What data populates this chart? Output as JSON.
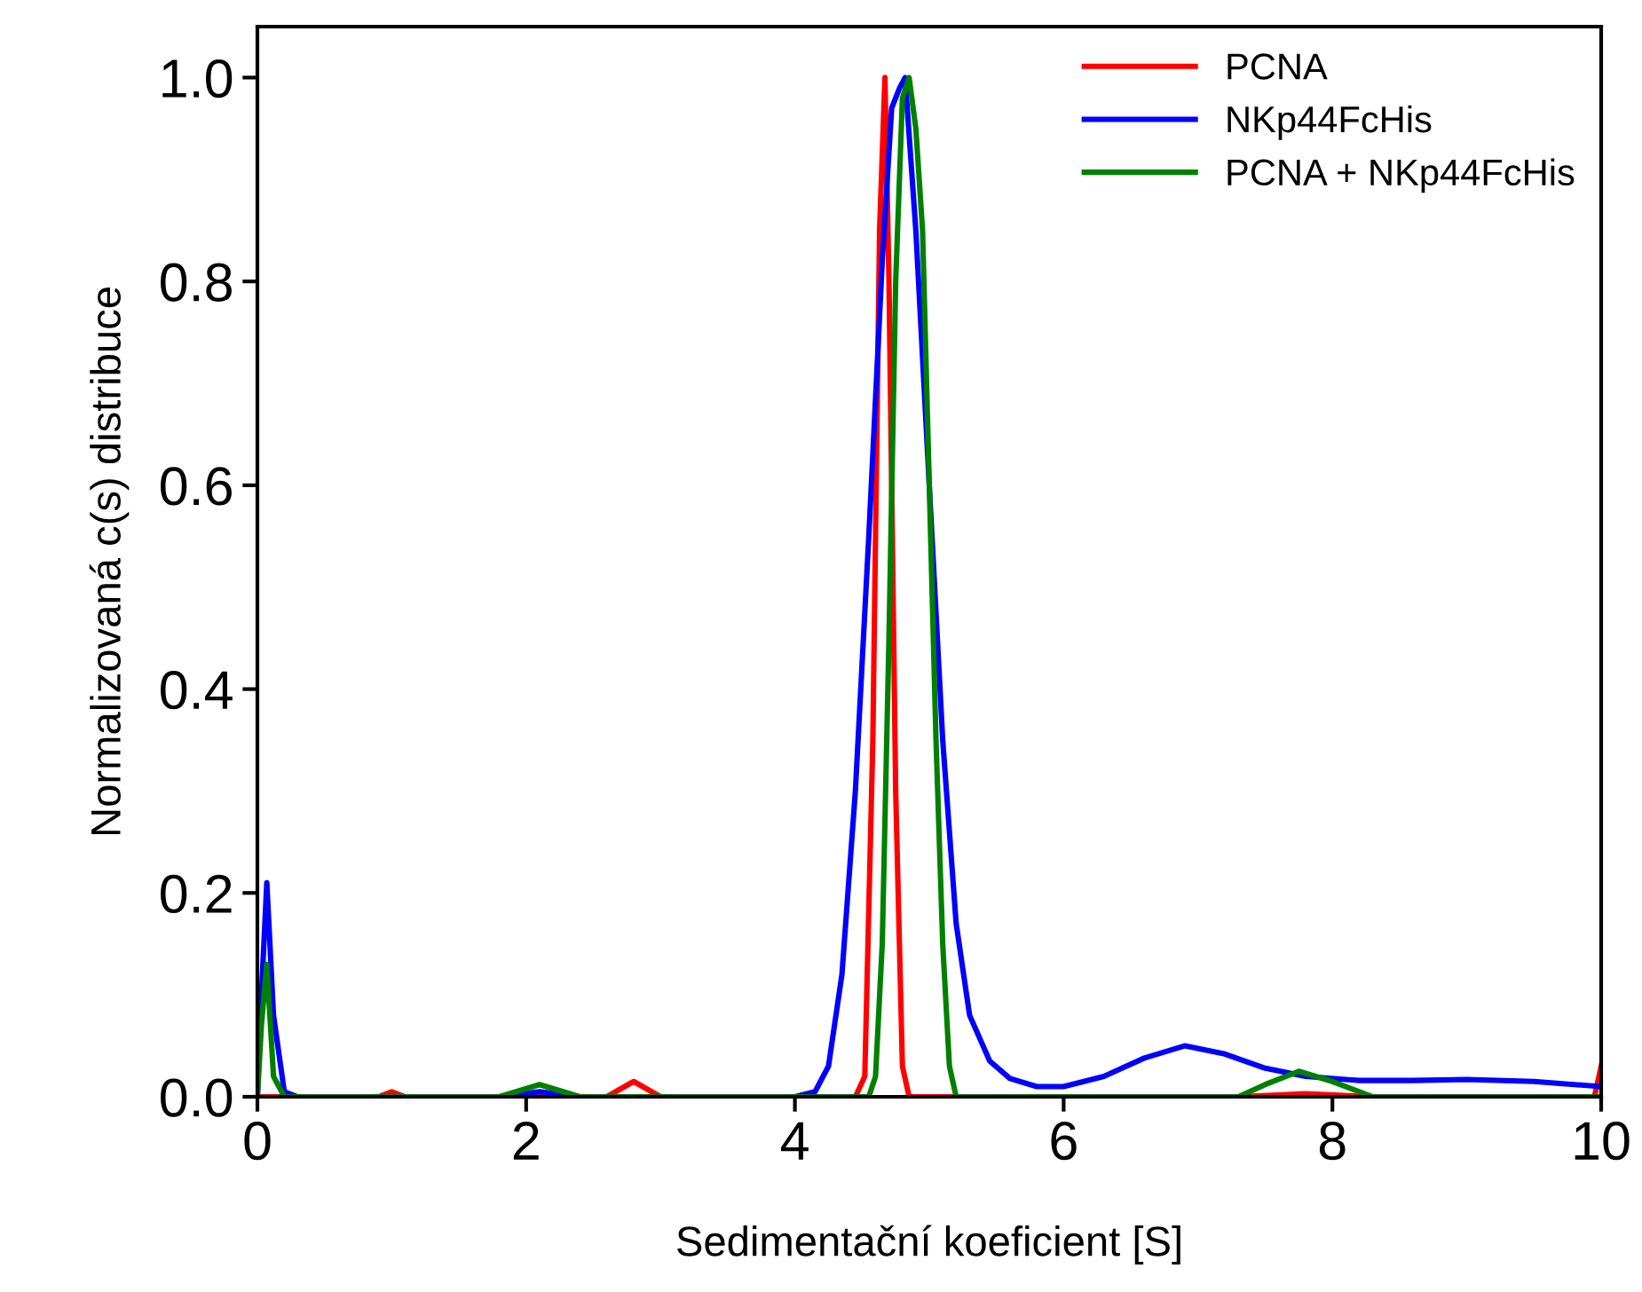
{
  "chart_data": {
    "type": "line",
    "xlabel": "Sedimentační koeficient [S]",
    "ylabel": "Normalizovaná c(s) distribuce",
    "xlim": [
      0,
      10
    ],
    "ylim": [
      0,
      1.05
    ],
    "xticks": [
      0,
      2,
      4,
      6,
      8,
      10
    ],
    "yticks": [
      {
        "value": 0,
        "label": "0.0"
      },
      0.2,
      0.4,
      0.6,
      0.8,
      {
        "value": 1,
        "label": "1.0"
      }
    ],
    "grid": false,
    "legend": "top right",
    "marker": "none",
    "line_style": "solid",
    "series": [
      {
        "name": "PCNA",
        "color": "#ff0000",
        "x": [
          0,
          0.9,
          1.0,
          1.1,
          2.6,
          2.8,
          3.0,
          4.45,
          4.52,
          4.58,
          4.63,
          4.67,
          4.7,
          4.75,
          4.8,
          4.85,
          7.3,
          7.8,
          8.3,
          9.95,
          10
        ],
        "values": [
          0,
          0,
          0.005,
          0,
          0,
          0.015,
          0,
          0,
          0.02,
          0.35,
          0.85,
          1.0,
          0.8,
          0.3,
          0.03,
          0,
          0,
          0.003,
          0,
          0,
          0.03
        ]
      },
      {
        "name": "NKp44FcHis",
        "color": "#0000ff",
        "x": [
          0,
          0.03,
          0.07,
          0.12,
          0.2,
          0.3,
          1.8,
          2.1,
          2.4,
          4.0,
          4.15,
          4.25,
          4.35,
          4.45,
          4.55,
          4.65,
          4.72,
          4.78,
          4.82,
          4.9,
          5.0,
          5.1,
          5.2,
          5.3,
          5.45,
          5.6,
          5.8,
          6.0,
          6.3,
          6.6,
          6.9,
          7.2,
          7.5,
          7.8,
          8.2,
          8.6,
          9.0,
          9.5,
          10
        ],
        "values": [
          0,
          0.1,
          0.21,
          0.08,
          0.005,
          0,
          0,
          0.005,
          0,
          0,
          0.005,
          0.03,
          0.12,
          0.3,
          0.55,
          0.82,
          0.97,
          0.99,
          1.0,
          0.85,
          0.6,
          0.35,
          0.17,
          0.08,
          0.035,
          0.018,
          0.01,
          0.01,
          0.02,
          0.038,
          0.05,
          0.042,
          0.028,
          0.02,
          0.016,
          0.016,
          0.017,
          0.015,
          0.01
        ]
      },
      {
        "name": "PCNA + NKp44FcHis",
        "color": "#008000",
        "x": [
          0,
          0.03,
          0.07,
          0.12,
          0.2,
          1.8,
          2.1,
          2.4,
          4.55,
          4.6,
          4.65,
          4.7,
          4.75,
          4.8,
          4.85,
          4.9,
          4.95,
          5.0,
          5.05,
          5.1,
          5.15,
          5.2,
          7.3,
          7.5,
          7.75,
          8.0,
          8.3,
          10
        ],
        "values": [
          0,
          0.07,
          0.13,
          0.02,
          0,
          0,
          0.012,
          0,
          0,
          0.02,
          0.15,
          0.45,
          0.8,
          0.98,
          1.0,
          0.95,
          0.85,
          0.6,
          0.35,
          0.15,
          0.03,
          0,
          0,
          0.012,
          0.025,
          0.015,
          0,
          0
        ]
      }
    ]
  }
}
